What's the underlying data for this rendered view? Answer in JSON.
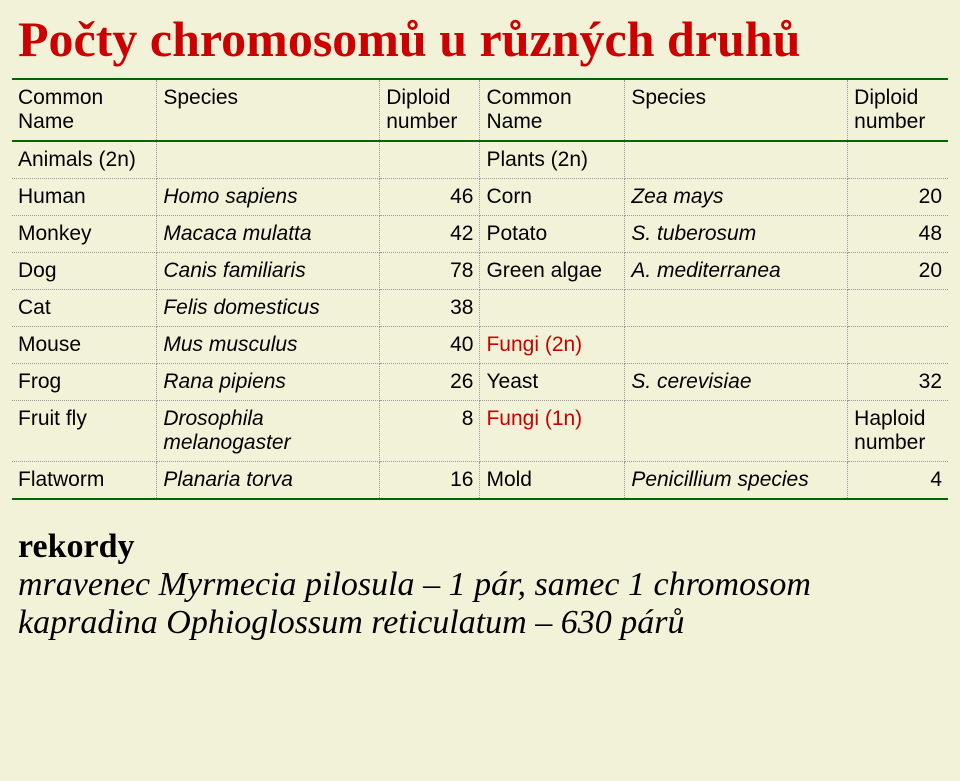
{
  "title": "Počty chromosomů u různých druhů",
  "headers": {
    "common": "Common Name",
    "species": "Species",
    "diploid": "Diploid number"
  },
  "left_section": "Animals (2n)",
  "right_section": "Plants (2n)",
  "rows": [
    {
      "l_common": "Human",
      "l_species": "Homo sapiens",
      "l_num": "46",
      "r_common": "Corn",
      "r_species": "Zea mays",
      "r_num": "20"
    },
    {
      "l_common": "Monkey",
      "l_species": "Macaca mulatta",
      "l_num": "42",
      "r_common": "Potato",
      "r_species": "S. tuberosum",
      "r_num": "48"
    },
    {
      "l_common": "Dog",
      "l_species": "Canis familiaris",
      "l_num": "78",
      "r_common": "Green algae",
      "r_species": "A. mediterranea",
      "r_num": "20"
    },
    {
      "l_common": "Cat",
      "l_species": "Felis domesticus",
      "l_num": "38",
      "r_common": "",
      "r_species": "",
      "r_num": ""
    },
    {
      "l_common": "Mouse",
      "l_species": "Mus musculus",
      "l_num": "40",
      "r_common_red": "Fungi (2n)",
      "r_species": "",
      "r_num": ""
    },
    {
      "l_common": "Frog",
      "l_species": "Rana pipiens",
      "l_num": "26",
      "r_common": "Yeast",
      "r_species": "S. cerevisiae",
      "r_num": "32"
    },
    {
      "l_common": "Fruit fly",
      "l_species": "Drosophila melanogaster",
      "l_num": "8",
      "r_common_red": "Fungi (1n)",
      "r_species": "",
      "r_num_hdr": "Haploid number"
    },
    {
      "l_common": "Flatworm",
      "l_species": "Planaria torva",
      "l_num": "16",
      "r_common": "Mold",
      "r_species": "Penicillium species",
      "r_num": "4"
    }
  ],
  "records": {
    "heading": "rekordy",
    "line1_pre": "mravenec ",
    "line1_sp": "Myrmecia pilosula",
    "line1_post": " – 1 pár, samec 1 chromosom",
    "line2_pre": "kapradina ",
    "line2_sp": "Ophioglossum reticulatum",
    "line2_post": " – 630 párů"
  },
  "style": {
    "bg": "#f2f2d8",
    "title_color": "#cc0000",
    "rule_color": "#006600",
    "dotted_color": "#999999",
    "red": "#cc0000",
    "text": "#000000",
    "title_fontsize": 50,
    "table_fontsize": 21,
    "records_fontsize": 34
  }
}
